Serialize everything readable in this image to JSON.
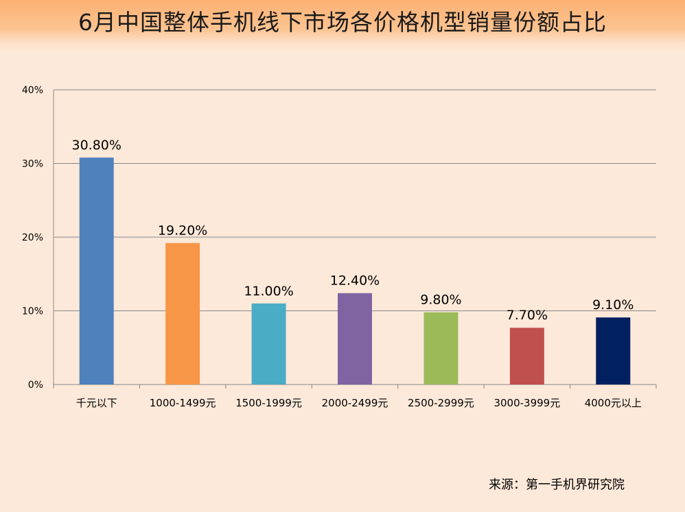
{
  "title": "6月中国整体手机线下市场各价格机型销量份额占比",
  "source": "来源：第一手机界研究院",
  "chart_data": {
    "type": "bar",
    "categories": [
      "千元以下",
      "1000-1499元",
      "1500-1999元",
      "2000-2499元",
      "2500-2999元",
      "3000-3999元",
      "4000元以上"
    ],
    "values": [
      30.8,
      19.2,
      11.0,
      12.4,
      9.8,
      7.7,
      9.1
    ],
    "data_labels": [
      "30.80%",
      "19.20%",
      "11.00%",
      "12.40%",
      "9.80%",
      "7.70%",
      "9.10%"
    ],
    "colors": [
      "#4f81bd",
      "#f79646",
      "#4bacc6",
      "#8064a2",
      "#9bbb59",
      "#c0504d",
      "#002060"
    ],
    "ylim": [
      0,
      40
    ],
    "yticks": [
      0,
      10,
      20,
      30,
      40
    ],
    "ytick_labels": [
      "0%",
      "10%",
      "20%",
      "30%",
      "40%"
    ],
    "grid": true,
    "legend": "none"
  }
}
